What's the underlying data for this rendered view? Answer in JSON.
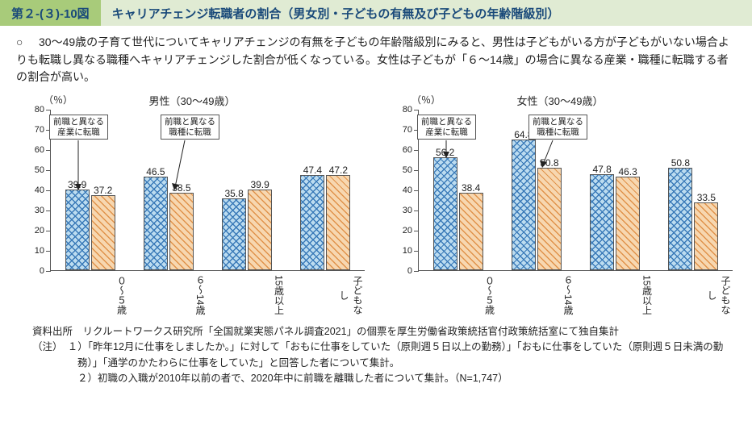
{
  "header": {
    "number": "第２-(３)-10図",
    "title": "キャリアチェンジ転職者の割合（男女別・子どもの有無及び子どもの年齢階級別）"
  },
  "description": "　30～49歳の子育て世代についてキャリアチェンジの有無を子どもの年齢階級別にみると、男性は子どもがいる方が子どもがいない場合よりも転職し異なる職種へキャリアチェンジした割合が低くなっている。女性は子どもが「６～14歳」の場合に異なる産業・職種に転職する者の割合が高い。",
  "chart_common": {
    "y_unit": "（％）",
    "ylim": [
      0,
      80
    ],
    "ytick_step": 10,
    "categories": [
      "０～５歳",
      "６～14歳",
      "15歳以上",
      "子どもなし"
    ],
    "series": [
      {
        "name": "前職と異なる産業に転職",
        "pattern": "pat-blue"
      },
      {
        "name": "前職と異なる職種に転職",
        "pattern": "pat-orange"
      }
    ],
    "annot_industry": "前職と異なる\n産業に転職",
    "annot_occupation": "前職と異なる\n職種に転職"
  },
  "charts": [
    {
      "title": "男性（30～49歳）",
      "data": [
        {
          "industry": 39.9,
          "occupation": 37.2
        },
        {
          "industry": 46.5,
          "occupation": 38.5
        },
        {
          "industry": 35.8,
          "occupation": 39.9
        },
        {
          "industry": 47.4,
          "occupation": 47.2
        }
      ]
    },
    {
      "title": "女性（30～49歳）",
      "data": [
        {
          "industry": 56.2,
          "occupation": 38.4
        },
        {
          "industry": 64.8,
          "occupation": 50.8
        },
        {
          "industry": 47.8,
          "occupation": 46.3
        },
        {
          "industry": 50.8,
          "occupation": 33.5
        }
      ]
    }
  ],
  "footer": {
    "source": "資料出所　リクルートワークス研究所「全国就業実態パネル調査2021」の個票を厚生労働省政策統括官付政策統括室にて独自集計",
    "notes": [
      "（注）　１）「昨年12月に仕事をしましたか。」に対して「おもに仕事をしていた（原則週５日以上の勤務）」「おもに仕事をしていた（原則週５日未満の勤務）」「通学のかたわらに仕事をしていた」と回答した者について集計。",
      "２）初職の入職が2010年以前の者で、2020年中に前職を離職した者について集計。（N=1,747）"
    ]
  },
  "colors": {
    "header_num_bg": "#a8cb7a",
    "header_title_bg": "#e0ebd3",
    "header_text": "#1a4a7a",
    "axis": "#555555",
    "blue": "#3a7ab8",
    "blue_bg": "#bcdcf0",
    "orange": "#e0924a",
    "orange_bg": "#f7d7b0"
  }
}
